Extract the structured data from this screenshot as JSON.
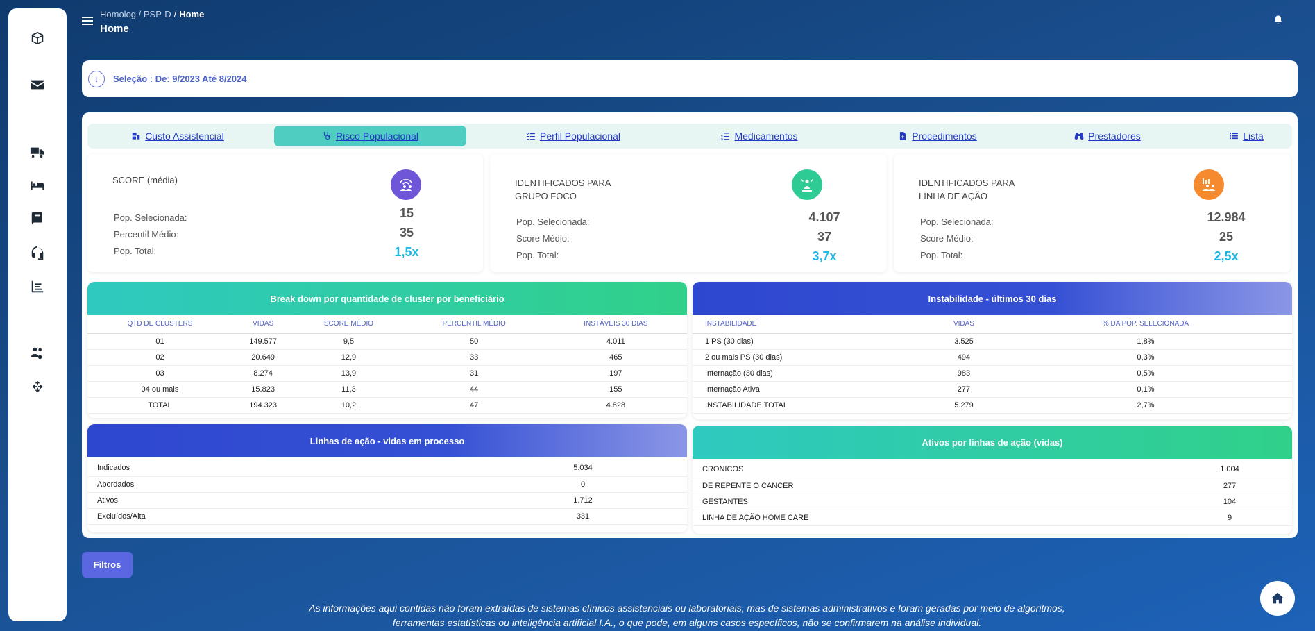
{
  "sidebar": {
    "icons": [
      "cube-icon",
      "envelope-icon",
      "truck-icon",
      "bed-icon",
      "book-icon",
      "headset-icon",
      "chart-list-icon",
      "users-gear-icon",
      "recycle-icon"
    ]
  },
  "header": {
    "breadcrumb_root": "Homolog / PSP-D",
    "breadcrumb_current": "Home",
    "title": "Home"
  },
  "selection": {
    "label": "Seleção : De: 9/2023 Até 8/2024"
  },
  "tabs": [
    {
      "label": "Custo Assistencial",
      "icon": "cost-icon",
      "active": false
    },
    {
      "label": "Risco Populacional",
      "icon": "stethoscope-icon",
      "active": true
    },
    {
      "label": "Perfil Populacional",
      "icon": "list-check-icon",
      "active": false
    },
    {
      "label": "Medicamentos",
      "icon": "list-ol-icon",
      "active": false
    },
    {
      "label": "Procedimentos",
      "icon": "file-medical-icon",
      "active": false
    },
    {
      "label": "Prestadores",
      "icon": "binoculars-icon",
      "active": false
    },
    {
      "label": "Lista",
      "icon": "list-icon",
      "active": false
    }
  ],
  "cards": [
    {
      "title": "SCORE (média)",
      "badge_color": "#6f56d9",
      "icon": "wifi-people-icon",
      "rows": [
        "Pop. Selecionada:",
        "Percentil Médio:",
        "Pop. Total:"
      ],
      "values": [
        "15",
        "35",
        "1,5x"
      ]
    },
    {
      "title": "IDENTIFICADOS PARA GRUPO FOCO",
      "badge_color": "#2ecb95",
      "icon": "target-person-icon",
      "rows": [
        "Pop. Selecionada:",
        "Score Médio:",
        "Pop. Total:"
      ],
      "values": [
        "4.107",
        "37",
        "3,7x"
      ]
    },
    {
      "title": "IDENTIFICADOS PARA LINHA DE AÇÃO",
      "badge_color": "#f58a2e",
      "icon": "people-chart-icon",
      "rows": [
        "Pop. Selecionada:",
        "Score Médio:",
        "Pop. Total:"
      ],
      "values": [
        "12.984",
        "25",
        "2,5x"
      ]
    }
  ],
  "breakdown": {
    "title": "Break down por quantidade de cluster por beneficiário",
    "headers": [
      "QTD DE CLUSTERS",
      "VIDAS",
      "SCORE MÉDIO",
      "PERCENTIL MÉDIO",
      "INSTÁVEIS 30 DIAS"
    ],
    "rows": [
      [
        "01",
        "149.577",
        "9,5",
        "50",
        "4.011"
      ],
      [
        "02",
        "20.649",
        "12,9",
        "33",
        "465"
      ],
      [
        "03",
        "8.274",
        "13,9",
        "31",
        "197"
      ],
      [
        "04 ou mais",
        "15.823",
        "11,3",
        "44",
        "155"
      ],
      [
        "TOTAL",
        "194.323",
        "10,2",
        "47",
        "4.828"
      ]
    ]
  },
  "instabilidade": {
    "title": "Instabilidade - últimos 30 dias",
    "headers": [
      "INSTABILIDADE",
      "VIDAS",
      "% DA POP. SELECIONADA"
    ],
    "rows": [
      [
        "1 PS (30 dias)",
        "3.525",
        "1,8%"
      ],
      [
        "2 ou mais PS (30 dias)",
        "494",
        "0,3%"
      ],
      [
        "Internação (30 dias)",
        "983",
        "0,5%"
      ],
      [
        "Internação Ativa",
        "277",
        "0,1%"
      ],
      [
        "INSTABILIDADE TOTAL",
        "5.279",
        "2,7%"
      ]
    ]
  },
  "linhas": {
    "title": "Linhas de ação - vidas em processo",
    "rows": [
      [
        "Indicados",
        "5.034"
      ],
      [
        "Abordados",
        "0"
      ],
      [
        "Ativos",
        "1.712"
      ],
      [
        "Excluídos/Alta",
        "331"
      ]
    ]
  },
  "ativos": {
    "title": "Ativos por linhas de ação (vidas)",
    "rows": [
      [
        "CRONICOS",
        "1.004"
      ],
      [
        "DE REPENTE O CANCER",
        "277"
      ],
      [
        "GESTANTES",
        "104"
      ],
      [
        "LINHA DE AÇÃO HOME CARE",
        "9"
      ]
    ]
  },
  "filters_button": "Filtros",
  "disclaimer_line1": "As informações aqui contidas não foram extraídas de sistemas clínicos assistenciais ou laboratoriais, mas de sistemas administrativos e foram geradas por meio de algoritmos,",
  "disclaimer_line2": "ferramentas estatísticas ou inteligência artificial I.A., o que pode, em alguns casos específicos, não se confirmarem na análise individual.",
  "colors": {
    "accent": "#5b67e0",
    "teal": "#2fc9c0",
    "blue": "#2e47cf",
    "highlight": "#1fb6e3"
  }
}
